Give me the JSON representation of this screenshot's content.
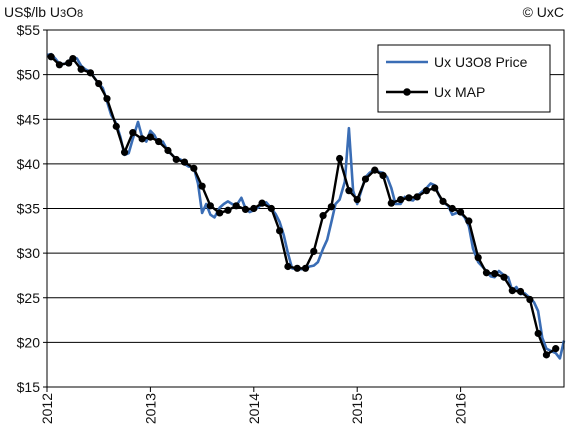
{
  "chart_data": {
    "type": "line",
    "ylabel": "US$/lb U3O8",
    "ylabel_parts": {
      "main": "US$/lb U",
      "sub1": "3",
      "mid": "O",
      "sub2": "8"
    },
    "credit": "© UxC",
    "ylim": [
      15,
      55
    ],
    "yticks": [
      15,
      20,
      25,
      30,
      35,
      40,
      45,
      50,
      55
    ],
    "ytick_labels": [
      "$15",
      "$20",
      "$25",
      "$30",
      "$35",
      "$40",
      "$45",
      "$50",
      "$55"
    ],
    "xlim": [
      2012.0,
      2017.0
    ],
    "xticks": [
      2012,
      2013,
      2014,
      2015,
      2016
    ],
    "xtick_labels": [
      "2012",
      "2013",
      "2014",
      "2015",
      "2016"
    ],
    "grid": "horizontal",
    "legend_position": "top-right",
    "series": [
      {
        "name": "Ux U3O8 Price",
        "color": "#3a6db5",
        "marker": "none",
        "points": [
          [
            2012.0,
            52.2
          ],
          [
            2012.04,
            52.3
          ],
          [
            2012.08,
            51.8
          ],
          [
            2012.12,
            51.2
          ],
          [
            2012.17,
            51.2
          ],
          [
            2012.21,
            51.5
          ],
          [
            2012.25,
            52.0
          ],
          [
            2012.29,
            51.8
          ],
          [
            2012.33,
            51.0
          ],
          [
            2012.37,
            50.6
          ],
          [
            2012.42,
            50.3
          ],
          [
            2012.46,
            49.6
          ],
          [
            2012.5,
            49.0
          ],
          [
            2012.54,
            48.5
          ],
          [
            2012.58,
            47.0
          ],
          [
            2012.62,
            45.5
          ],
          [
            2012.67,
            44.5
          ],
          [
            2012.71,
            43.0
          ],
          [
            2012.75,
            41.0
          ],
          [
            2012.79,
            41.2
          ],
          [
            2012.83,
            42.8
          ],
          [
            2012.88,
            44.7
          ],
          [
            2012.92,
            43.0
          ],
          [
            2012.96,
            42.5
          ],
          [
            2013.0,
            43.7
          ],
          [
            2013.04,
            43.2
          ],
          [
            2013.08,
            42.3
          ],
          [
            2013.12,
            42.5
          ],
          [
            2013.17,
            41.4
          ],
          [
            2013.21,
            41.0
          ],
          [
            2013.25,
            40.5
          ],
          [
            2013.29,
            40.5
          ],
          [
            2013.33,
            40.0
          ],
          [
            2013.37,
            39.7
          ],
          [
            2013.42,
            39.6
          ],
          [
            2013.46,
            37.8
          ],
          [
            2013.5,
            34.5
          ],
          [
            2013.54,
            35.5
          ],
          [
            2013.58,
            34.3
          ],
          [
            2013.62,
            34.0
          ],
          [
            2013.67,
            35.1
          ],
          [
            2013.71,
            35.5
          ],
          [
            2013.75,
            35.8
          ],
          [
            2013.79,
            35.5
          ],
          [
            2013.83,
            35.3
          ],
          [
            2013.88,
            36.2
          ],
          [
            2013.92,
            35.0
          ],
          [
            2013.96,
            34.6
          ],
          [
            2014.0,
            34.8
          ],
          [
            2014.04,
            35.1
          ],
          [
            2014.08,
            35.5
          ],
          [
            2014.12,
            35.7
          ],
          [
            2014.17,
            35.0
          ],
          [
            2014.21,
            34.4
          ],
          [
            2014.25,
            33.5
          ],
          [
            2014.29,
            32.0
          ],
          [
            2014.33,
            30.0
          ],
          [
            2014.37,
            28.3
          ],
          [
            2014.42,
            28.2
          ],
          [
            2014.46,
            28.2
          ],
          [
            2014.5,
            28.3
          ],
          [
            2014.54,
            28.5
          ],
          [
            2014.58,
            28.6
          ],
          [
            2014.62,
            29.0
          ],
          [
            2014.67,
            30.5
          ],
          [
            2014.71,
            31.5
          ],
          [
            2014.75,
            33.5
          ],
          [
            2014.79,
            35.5
          ],
          [
            2014.83,
            36.0
          ],
          [
            2014.88,
            38.0
          ],
          [
            2014.92,
            44.0
          ],
          [
            2014.96,
            37.0
          ],
          [
            2015.0,
            35.5
          ],
          [
            2015.04,
            37.0
          ],
          [
            2015.08,
            38.5
          ],
          [
            2015.12,
            39.0
          ],
          [
            2015.17,
            39.4
          ],
          [
            2015.21,
            39.1
          ],
          [
            2015.25,
            39.0
          ],
          [
            2015.29,
            38.5
          ],
          [
            2015.33,
            37.3
          ],
          [
            2015.37,
            35.5
          ],
          [
            2015.42,
            35.5
          ],
          [
            2015.46,
            36.3
          ],
          [
            2015.5,
            36.0
          ],
          [
            2015.54,
            35.9
          ],
          [
            2015.58,
            36.4
          ],
          [
            2015.62,
            36.8
          ],
          [
            2015.67,
            37.3
          ],
          [
            2015.71,
            37.8
          ],
          [
            2015.75,
            37.6
          ],
          [
            2015.79,
            36.5
          ],
          [
            2015.83,
            35.7
          ],
          [
            2015.88,
            35.3
          ],
          [
            2015.92,
            34.3
          ],
          [
            2015.96,
            34.5
          ],
          [
            2016.0,
            34.5
          ],
          [
            2016.04,
            34.0
          ],
          [
            2016.08,
            33.0
          ],
          [
            2016.12,
            30.5
          ],
          [
            2016.17,
            29.0
          ],
          [
            2016.21,
            28.5
          ],
          [
            2016.25,
            28.0
          ],
          [
            2016.29,
            27.4
          ],
          [
            2016.33,
            27.3
          ],
          [
            2016.37,
            28.0
          ],
          [
            2016.42,
            27.5
          ],
          [
            2016.46,
            27.3
          ],
          [
            2016.5,
            25.8
          ],
          [
            2016.54,
            26.2
          ],
          [
            2016.58,
            25.4
          ],
          [
            2016.62,
            25.5
          ],
          [
            2016.67,
            25.0
          ],
          [
            2016.71,
            24.5
          ],
          [
            2016.75,
            23.5
          ],
          [
            2016.79,
            20.5
          ],
          [
            2016.83,
            19.3
          ],
          [
            2016.88,
            19.0
          ],
          [
            2016.92,
            18.8
          ],
          [
            2016.96,
            18.2
          ],
          [
            2017.0,
            20.2
          ]
        ]
      },
      {
        "name": "Ux MAP",
        "color": "#000000",
        "marker": "circle",
        "points": [
          [
            2012.04,
            52.0
          ],
          [
            2012.12,
            51.1
          ],
          [
            2012.21,
            51.3
          ],
          [
            2012.25,
            51.8
          ],
          [
            2012.33,
            50.6
          ],
          [
            2012.42,
            50.2
          ],
          [
            2012.5,
            49.0
          ],
          [
            2012.58,
            47.3
          ],
          [
            2012.67,
            44.2
          ],
          [
            2012.75,
            41.3
          ],
          [
            2012.83,
            43.5
          ],
          [
            2012.92,
            42.8
          ],
          [
            2013.0,
            43.0
          ],
          [
            2013.08,
            42.5
          ],
          [
            2013.17,
            41.5
          ],
          [
            2013.25,
            40.5
          ],
          [
            2013.33,
            40.2
          ],
          [
            2013.42,
            39.5
          ],
          [
            2013.5,
            37.5
          ],
          [
            2013.58,
            35.3
          ],
          [
            2013.67,
            34.5
          ],
          [
            2013.75,
            34.8
          ],
          [
            2013.83,
            35.3
          ],
          [
            2013.92,
            34.9
          ],
          [
            2014.0,
            35.0
          ],
          [
            2014.08,
            35.6
          ],
          [
            2014.17,
            35.0
          ],
          [
            2014.25,
            32.5
          ],
          [
            2014.33,
            28.5
          ],
          [
            2014.42,
            28.3
          ],
          [
            2014.5,
            28.3
          ],
          [
            2014.58,
            30.2
          ],
          [
            2014.67,
            34.2
          ],
          [
            2014.75,
            35.2
          ],
          [
            2014.83,
            40.6
          ],
          [
            2014.92,
            37.0
          ],
          [
            2015.0,
            36.0
          ],
          [
            2015.08,
            38.3
          ],
          [
            2015.17,
            39.3
          ],
          [
            2015.25,
            38.7
          ],
          [
            2015.33,
            35.6
          ],
          [
            2015.42,
            36.0
          ],
          [
            2015.5,
            36.2
          ],
          [
            2015.58,
            36.3
          ],
          [
            2015.67,
            37.0
          ],
          [
            2015.75,
            37.3
          ],
          [
            2015.83,
            35.8
          ],
          [
            2015.92,
            35.0
          ],
          [
            2016.0,
            34.6
          ],
          [
            2016.08,
            33.6
          ],
          [
            2016.17,
            29.5
          ],
          [
            2016.25,
            27.8
          ],
          [
            2016.33,
            27.7
          ],
          [
            2016.42,
            27.3
          ],
          [
            2016.5,
            25.8
          ],
          [
            2016.58,
            25.7
          ],
          [
            2016.67,
            24.8
          ],
          [
            2016.75,
            21.0
          ],
          [
            2016.83,
            18.6
          ],
          [
            2016.92,
            19.3
          ]
        ]
      }
    ]
  }
}
